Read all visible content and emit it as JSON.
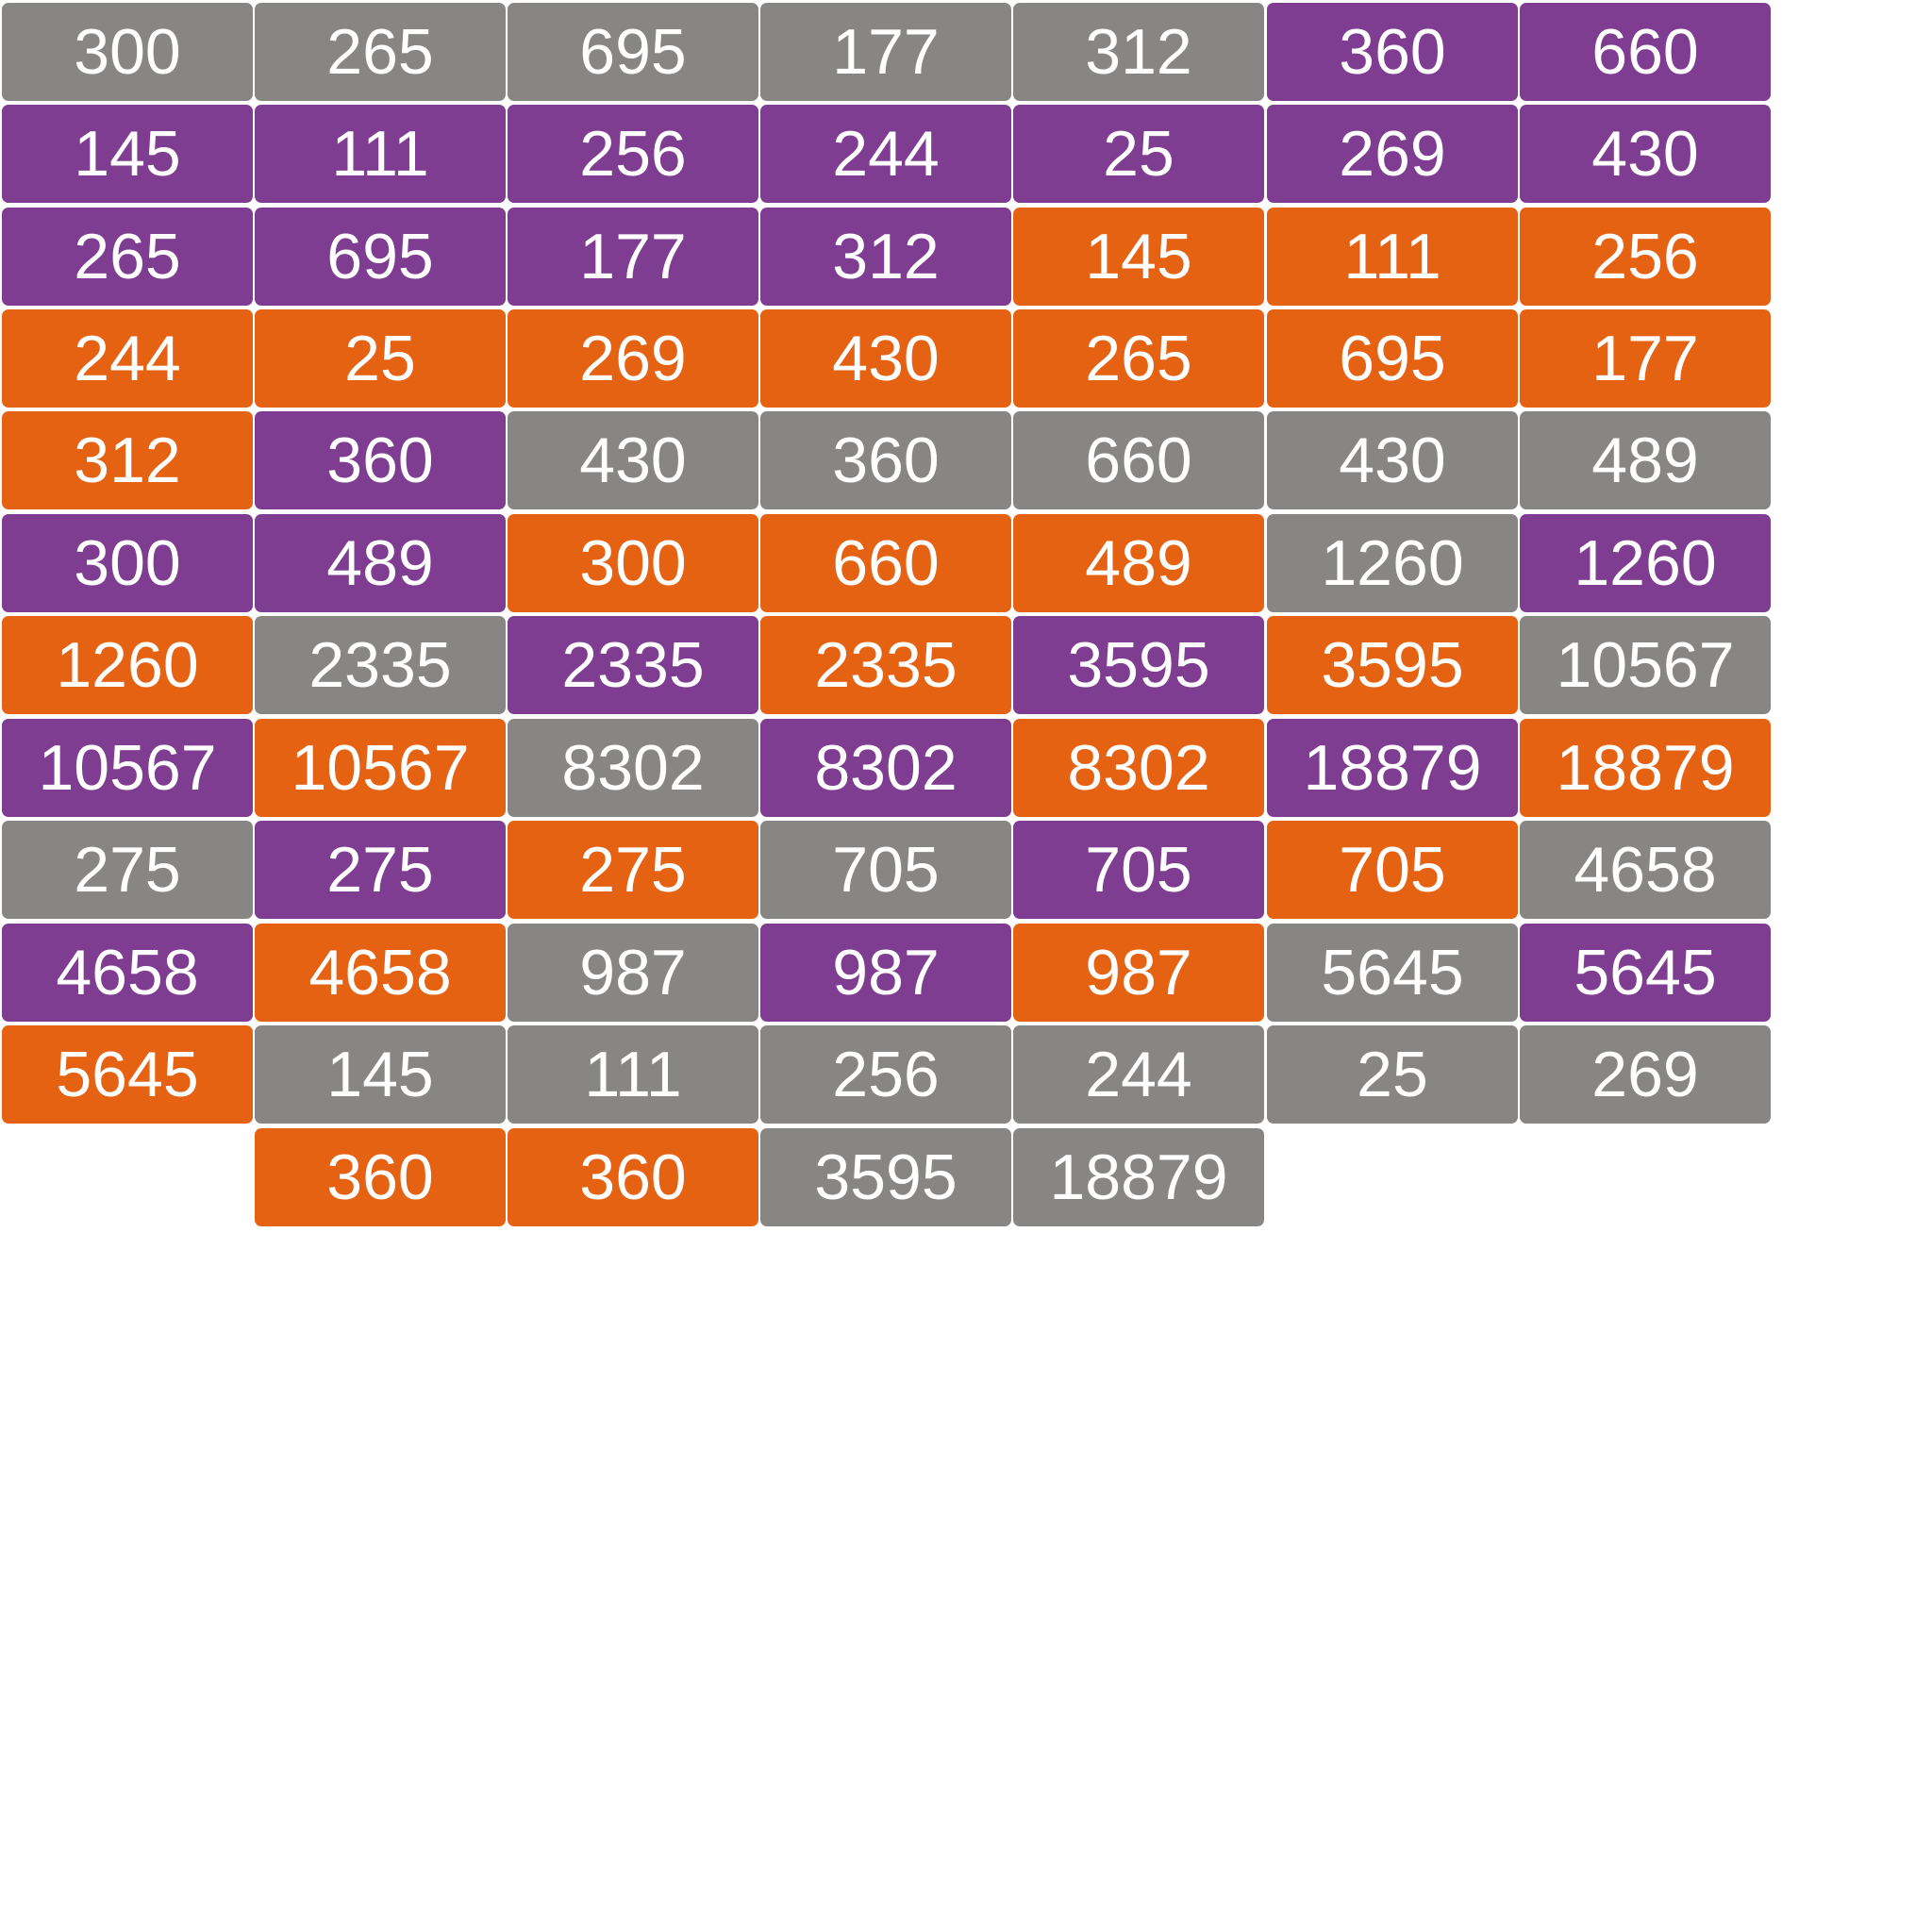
{
  "palette": {
    "gray": "#878685",
    "purple": "#7e3d90",
    "orange": "#e66213"
  },
  "tile_rows": [
    [
      {
        "value": "300",
        "color": "gray"
      },
      {
        "value": "265",
        "color": "gray"
      },
      {
        "value": "695",
        "color": "gray"
      },
      {
        "value": "177",
        "color": "gray"
      },
      {
        "value": "312",
        "color": "gray"
      },
      {
        "value": "360",
        "color": "purple"
      },
      {
        "value": "660",
        "color": "purple"
      }
    ],
    [
      {
        "value": "145",
        "color": "purple"
      },
      {
        "value": "111",
        "color": "purple"
      },
      {
        "value": "256",
        "color": "purple"
      },
      {
        "value": "244",
        "color": "purple"
      },
      {
        "value": "25",
        "color": "purple"
      },
      {
        "value": "269",
        "color": "purple"
      },
      {
        "value": "430",
        "color": "purple"
      }
    ],
    [
      {
        "value": "265",
        "color": "purple"
      },
      {
        "value": "695",
        "color": "purple"
      },
      {
        "value": "177",
        "color": "purple"
      },
      {
        "value": "312",
        "color": "purple"
      },
      {
        "value": "145",
        "color": "orange"
      },
      {
        "value": "111",
        "color": "orange"
      },
      {
        "value": "256",
        "color": "orange"
      }
    ],
    [
      {
        "value": "244",
        "color": "orange"
      },
      {
        "value": "25",
        "color": "orange"
      },
      {
        "value": "269",
        "color": "orange"
      },
      {
        "value": "430",
        "color": "orange"
      },
      {
        "value": "265",
        "color": "orange"
      },
      {
        "value": "695",
        "color": "orange"
      },
      {
        "value": "177",
        "color": "orange"
      }
    ],
    [
      {
        "value": "312",
        "color": "orange"
      },
      {
        "value": "360",
        "color": "purple"
      },
      {
        "value": "430",
        "color": "gray"
      },
      {
        "value": "360",
        "color": "gray"
      },
      {
        "value": "660",
        "color": "gray"
      },
      {
        "value": "430",
        "color": "gray"
      },
      {
        "value": "489",
        "color": "gray"
      }
    ],
    [
      {
        "value": "300",
        "color": "purple"
      },
      {
        "value": "489",
        "color": "purple"
      },
      {
        "value": "300",
        "color": "orange"
      },
      {
        "value": "660",
        "color": "orange"
      },
      {
        "value": "489",
        "color": "orange"
      },
      {
        "value": "1260",
        "color": "gray"
      },
      {
        "value": "1260",
        "color": "purple"
      }
    ],
    [
      {
        "value": "1260",
        "color": "orange"
      },
      {
        "value": "2335",
        "color": "gray"
      },
      {
        "value": "2335",
        "color": "purple"
      },
      {
        "value": "2335",
        "color": "orange"
      },
      {
        "value": "3595",
        "color": "purple"
      },
      {
        "value": "3595",
        "color": "orange"
      },
      {
        "value": "10567",
        "color": "gray"
      }
    ],
    [
      {
        "value": "10567",
        "color": "purple"
      },
      {
        "value": "10567",
        "color": "orange"
      },
      {
        "value": "8302",
        "color": "gray"
      },
      {
        "value": "8302",
        "color": "purple"
      },
      {
        "value": "8302",
        "color": "orange"
      },
      {
        "value": "18879",
        "color": "purple"
      },
      {
        "value": "18879",
        "color": "orange"
      }
    ],
    [
      {
        "value": "275",
        "color": "gray"
      },
      {
        "value": "275",
        "color": "purple"
      },
      {
        "value": "275",
        "color": "orange"
      },
      {
        "value": "705",
        "color": "gray"
      },
      {
        "value": "705",
        "color": "purple"
      },
      {
        "value": "705",
        "color": "orange"
      },
      {
        "value": "4658",
        "color": "gray"
      }
    ],
    [
      {
        "value": "4658",
        "color": "purple"
      },
      {
        "value": "4658",
        "color": "orange"
      },
      {
        "value": "987",
        "color": "gray"
      },
      {
        "value": "987",
        "color": "purple"
      },
      {
        "value": "987",
        "color": "orange"
      },
      {
        "value": "5645",
        "color": "gray"
      },
      {
        "value": "5645",
        "color": "purple"
      }
    ],
    [
      {
        "value": "5645",
        "color": "orange"
      },
      {
        "value": "145",
        "color": "gray"
      },
      {
        "value": "111",
        "color": "gray"
      },
      {
        "value": "256",
        "color": "gray"
      },
      {
        "value": "244",
        "color": "gray"
      },
      {
        "value": "25",
        "color": "gray"
      },
      {
        "value": "269",
        "color": "gray"
      }
    ],
    [
      null,
      {
        "value": "360",
        "color": "orange"
      },
      {
        "value": "360",
        "color": "orange"
      },
      {
        "value": "3595",
        "color": "gray"
      },
      {
        "value": "18879",
        "color": "gray"
      }
    ]
  ]
}
